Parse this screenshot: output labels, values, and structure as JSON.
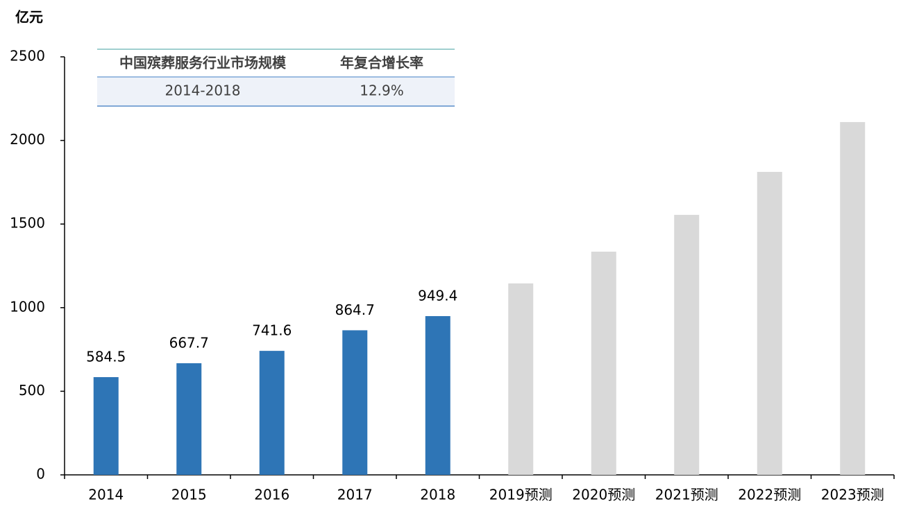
{
  "chart_data": {
    "type": "bar",
    "y_label": "亿元",
    "categories": [
      "2014",
      "2015",
      "2016",
      "2017",
      "2018",
      "2019预测",
      "2020预测",
      "2021预测",
      "2022预测",
      "2023预测"
    ],
    "values": [
      584.5,
      667.7,
      741.6,
      864.7,
      949.4,
      1145,
      1335,
      1555,
      1812,
      2110
    ],
    "colors": [
      "#2e75b6",
      "#2e75b6",
      "#2e75b6",
      "#2e75b6",
      "#2e75b6",
      "#d9d9d9",
      "#d9d9d9",
      "#d9d9d9",
      "#d9d9d9",
      "#d9d9d9"
    ],
    "show_value_labels": [
      true,
      true,
      true,
      true,
      true,
      false,
      false,
      false,
      false,
      false
    ],
    "ylim": [
      0,
      2500
    ],
    "yticks": [
      0,
      500,
      1000,
      1500,
      2000,
      2500
    ],
    "grid": false
  },
  "table": {
    "header": [
      "中国殡葬服务行业市场规模",
      "年复合增长率"
    ],
    "rows": [
      [
        "2014-2018",
        "12.9%"
      ]
    ]
  }
}
